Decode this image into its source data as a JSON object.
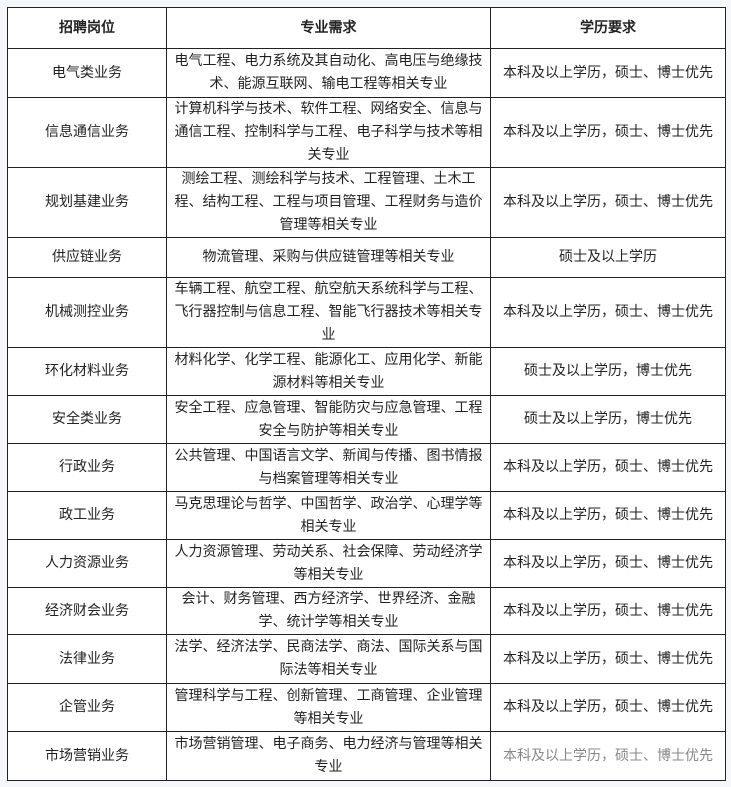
{
  "table": {
    "headers": [
      "招聘岗位",
      "专业需求",
      "学历要求"
    ],
    "rows": [
      {
        "position": "电气类业务",
        "majors": "电气工程、电力系统及其自动化、高电压与绝缘技术、能源互联网、输电工程等相关专业",
        "education": "本科及以上学历，硕士、博士优先"
      },
      {
        "position": "信息通信业务",
        "majors": "计算机科学与技术、软件工程、网络安全、信息与通信工程、控制科学与工程、电子科学与技术等相关专业",
        "education": "本科及以上学历，硕士、博士优先"
      },
      {
        "position": "规划基建业务",
        "majors": "测绘工程、测绘科学与技术、工程管理、土木工程、结构工程、工程与项目管理、工程财务与造价管理等相关专业",
        "education": "本科及以上学历，硕士、博士优先"
      },
      {
        "position": "供应链业务",
        "majors": "物流管理、采购与供应链管理等相关专业",
        "education": "硕士及以上学历"
      },
      {
        "position": "机械测控业务",
        "majors": "车辆工程、航空工程、航空航天系统科学与工程、飞行器控制与信息工程、智能飞行器技术等相关专业",
        "education": "本科及以上学历，硕士、博士优先"
      },
      {
        "position": "环化材料业务",
        "majors": "材料化学、化学工程、能源化工、应用化学、新能源材料等相关专业",
        "education": "硕士及以上学历，博士优先"
      },
      {
        "position": "安全类业务",
        "majors": "安全工程、应急管理、智能防灾与应急管理、工程安全与防护等相关专业",
        "education": "硕士及以上学历，博士优先"
      },
      {
        "position": "行政业务",
        "majors": "公共管理、中国语言文学、新闻与传播、图书情报与档案管理等相关专业",
        "education": "本科及以上学历，硕士、博士优先"
      },
      {
        "position": "政工业务",
        "majors": "马克思理论与哲学、中国哲学、政治学、心理学等相关专业",
        "education": "本科及以上学历，硕士、博士优先"
      },
      {
        "position": "人力资源业务",
        "majors": "人力资源管理、劳动关系、社会保障、劳动经济学等相关专业",
        "education": "本科及以上学历，硕士、博士优先"
      },
      {
        "position": "经济财会业务",
        "majors": "会计、财务管理、西方经济学、世界经济、金融学、统计学等相关专业",
        "education": "本科及以上学历，硕士、博士优先"
      },
      {
        "position": "法律业务",
        "majors": "法学、经济法学、民商法学、商法、国际关系与国际法等相关专业",
        "education": "本科及以上学历，硕士、博士优先"
      },
      {
        "position": "企管业务",
        "majors": "管理科学与工程、创新管理、工商管理、企业管理等相关专业",
        "education": "本科及以上学历，硕士、博士优先"
      },
      {
        "position": "市场营销业务",
        "majors": "市场营销管理、电子商务、电力经济与管理等相关专业",
        "education": "本科及以上学历，硕士、博士优先"
      }
    ]
  }
}
